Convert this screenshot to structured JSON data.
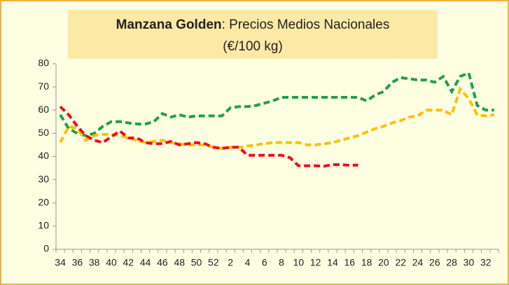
{
  "chart_data": {
    "type": "line",
    "title": {
      "bold": "Manzana Golden",
      "rest": ": Precios Medios Nacionales",
      "line2": "(€/100 kg)"
    },
    "categories": [
      34,
      null,
      36,
      null,
      38,
      null,
      40,
      null,
      42,
      null,
      44,
      null,
      46,
      null,
      48,
      null,
      50,
      null,
      52,
      null,
      2,
      null,
      4,
      null,
      6,
      null,
      8,
      null,
      10,
      null,
      12,
      null,
      14,
      null,
      16,
      null,
      18,
      null,
      20,
      null,
      22,
      null,
      24,
      null,
      26,
      null,
      28,
      null,
      30,
      null,
      32,
      null
    ],
    "series": [
      {
        "color": "#1fa04a",
        "values": [
          58,
          52,
          50,
          49,
          50,
          53,
          55,
          55,
          54.5,
          54,
          54,
          55,
          58.5,
          57,
          58,
          57,
          57.5,
          57.5,
          57.5,
          57.5,
          61,
          61.5,
          61.5,
          62,
          63,
          64,
          65.5,
          65.5,
          65.5,
          65.5,
          65.5,
          65.5,
          65.5,
          65.5,
          65.5,
          65.5,
          64,
          66.5,
          68,
          72,
          74,
          73.5,
          73,
          73,
          72,
          74.5,
          68,
          74.5,
          76,
          62,
          60,
          60
        ]
      },
      {
        "color": "#ffc000",
        "values": [
          46,
          53,
          52,
          47,
          49,
          49.5,
          49.5,
          49,
          48,
          47,
          46,
          46.5,
          47,
          46,
          45.5,
          45,
          45,
          45,
          44,
          43.5,
          44,
          44,
          44.5,
          45,
          45.5,
          46,
          46,
          46,
          46,
          45,
          45,
          45.5,
          46,
          47,
          48,
          49,
          50.5,
          52,
          53,
          54.5,
          55.5,
          57,
          57.5,
          60,
          60,
          60,
          58,
          69,
          65,
          58,
          57.5,
          58
        ]
      },
      {
        "color": "#e8101a",
        "values": [
          61.5,
          58,
          53,
          49,
          47,
          46,
          48.5,
          51,
          48,
          48,
          46,
          45.5,
          45.5,
          46.5,
          45,
          45.5,
          46,
          45.5,
          44,
          43.5,
          44,
          44,
          40.5,
          40.5,
          40.5,
          40.5,
          40.5,
          39.5,
          36,
          36,
          36,
          35.8,
          36.5,
          36.5,
          36.2,
          36.3,
          null,
          null,
          null,
          null,
          null,
          null,
          null,
          null,
          null,
          null,
          null,
          null,
          null,
          null,
          null,
          null
        ]
      }
    ],
    "ylim": [
      0,
      80
    ],
    "yticks": [
      0,
      10,
      20,
      30,
      40,
      50,
      60,
      70,
      80
    ],
    "grid": false
  }
}
